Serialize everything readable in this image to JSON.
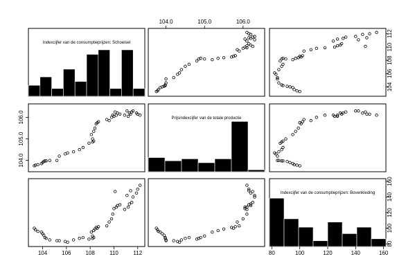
{
  "chart_data": {
    "type": "scatter-matrix",
    "variables": [
      {
        "key": "schoeisel",
        "label": "Indexcijfer van de consumptieprijzen: Schoeisel",
        "range": [
          103.0,
          112.4
        ],
        "ticks": [
          104,
          106,
          108,
          110,
          112
        ],
        "ticklabels": [
          "104",
          "106",
          "108",
          "110",
          "112"
        ],
        "hist_density": [
          0.17,
          0.3,
          0.12,
          0.42,
          0.23,
          0.65,
          0.72,
          0.12,
          0.72,
          0.12
        ]
      },
      {
        "key": "productie",
        "label": "Prijsindexcijfer van de totale productie",
        "range": [
          103.6,
          106.5
        ],
        "ticks": [
          104.0,
          105.0,
          106.0
        ],
        "ticklabels": [
          "104.0",
          "105.0",
          "106.0"
        ],
        "hist_density": [
          0.22,
          0.17,
          0.2,
          0.14,
          0.2,
          0.78,
          0.03
        ]
      },
      {
        "key": "bovenkleding",
        "label": "Indexcijfer van de consumptieprijzen: Bovenkleding",
        "range": [
          80,
          160
        ],
        "ticks": [
          80,
          100,
          120,
          140,
          160
        ],
        "ticklabels": [
          "80",
          "100",
          "120",
          "140",
          "160"
        ],
        "hist_density": [
          0.75,
          0.43,
          0.3,
          0.09,
          0.38,
          0.2,
          0.3,
          0.12
        ]
      }
    ],
    "points": [
      [
        103.3,
        103.75,
        100
      ],
      [
        103.4,
        103.78,
        98
      ],
      [
        103.6,
        103.8,
        96
      ],
      [
        103.9,
        103.85,
        95
      ],
      [
        104.0,
        103.9,
        93
      ],
      [
        104.1,
        103.95,
        91
      ],
      [
        104.2,
        103.98,
        88
      ],
      [
        104.3,
        103.98,
        87
      ],
      [
        104.6,
        104.0,
        85
      ],
      [
        105.2,
        104.0,
        84
      ],
      [
        105.4,
        104.2,
        84
      ],
      [
        105.9,
        104.3,
        83
      ],
      [
        106.1,
        104.35,
        82
      ],
      [
        106.6,
        104.4,
        85
      ],
      [
        107.1,
        104.5,
        87
      ],
      [
        107.4,
        104.6,
        88
      ],
      [
        107.9,
        104.8,
        86
      ],
      [
        108.2,
        104.85,
        87
      ],
      [
        108.3,
        104.9,
        88
      ],
      [
        108.2,
        105.0,
        90
      ],
      [
        108.1,
        105.2,
        95
      ],
      [
        108.3,
        105.35,
        97
      ],
      [
        108.4,
        105.5,
        99
      ],
      [
        108.5,
        105.7,
        101
      ],
      [
        108.6,
        105.75,
        100
      ],
      [
        108.7,
        105.8,
        102
      ],
      [
        109.4,
        105.9,
        103
      ],
      [
        109.6,
        105.85,
        108
      ],
      [
        109.8,
        106.0,
        112
      ],
      [
        109.9,
        106.1,
        118
      ],
      [
        110.0,
        106.05,
        125
      ],
      [
        110.2,
        106.1,
        127
      ],
      [
        110.3,
        106.2,
        129
      ],
      [
        110.5,
        106.15,
        130
      ],
      [
        110.9,
        106.1,
        124
      ],
      [
        111.2,
        106.05,
        127
      ],
      [
        111.3,
        106.2,
        131
      ],
      [
        111.5,
        106.25,
        133
      ],
      [
        111.6,
        106.3,
        140
      ],
      [
        111.9,
        106.2,
        145
      ],
      [
        112.0,
        106.15,
        150
      ],
      [
        112.2,
        106.1,
        155
      ],
      [
        111.4,
        106.15,
        148
      ],
      [
        110.1,
        106.25,
        147
      ],
      [
        111.1,
        106.3,
        142
      ]
    ],
    "xlabel": "",
    "ylabel": "",
    "grid": false
  }
}
